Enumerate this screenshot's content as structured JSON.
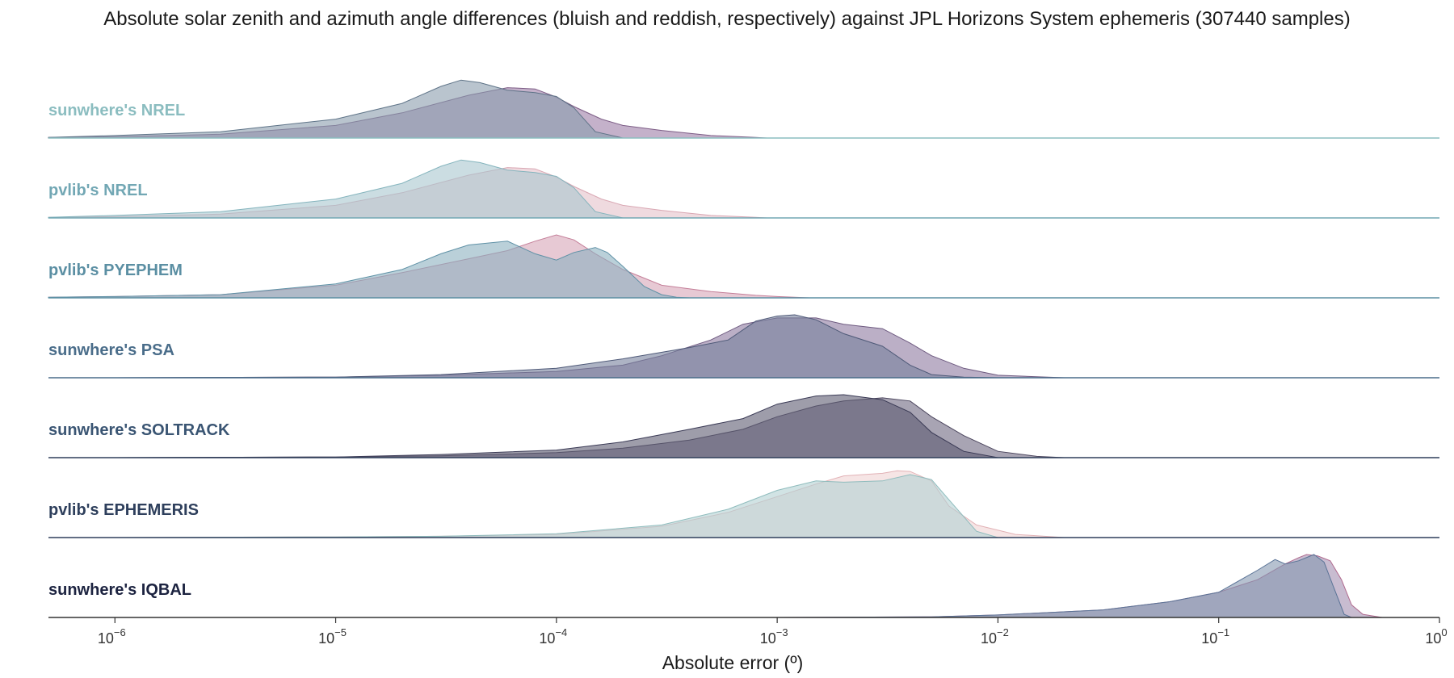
{
  "chart_data": {
    "type": "area",
    "subtype": "ridgeline-kde",
    "title": "Absolute solar zenith and azimuth angle differences (bluish and reddish, respectively) against JPL Horizons System ephemeris (307440 samples)",
    "xlabel": "Absolute error (º)",
    "xscale": "log",
    "xlim": [
      5e-07,
      1
    ],
    "x_ticks": [
      {
        "base": "10",
        "exp": "−6",
        "value": 1e-06
      },
      {
        "base": "10",
        "exp": "−5",
        "value": 1e-05
      },
      {
        "base": "10",
        "exp": "−4",
        "value": 0.0001
      },
      {
        "base": "10",
        "exp": "−3",
        "value": 0.001
      },
      {
        "base": "10",
        "exp": "−2",
        "value": 0.01
      },
      {
        "base": "10",
        "exp": "−1",
        "value": 0.1
      },
      {
        "base": "10",
        "exp": "0",
        "value": 1
      }
    ],
    "grid": false,
    "legend": "none",
    "rows": [
      {
        "label": "sunwhere's NREL",
        "label_color": "#8bbdc0",
        "baseline_color": "#8bbdc0",
        "zenith": {
          "fill": "#8a9cad",
          "stroke": "#5e7387",
          "x": [
            5e-07,
            1e-06,
            3e-06,
            1e-05,
            2e-05,
            3e-05,
            3.7e-05,
            4.5e-05,
            6e-05,
            8e-05,
            0.0001,
            0.00012,
            0.00015,
            0.0002
          ],
          "y": [
            0.01,
            0.04,
            0.1,
            0.3,
            0.55,
            0.82,
            0.92,
            0.88,
            0.76,
            0.72,
            0.66,
            0.48,
            0.1,
            0.0
          ]
        },
        "azimuth": {
          "fill": "#9d7da6",
          "stroke": "#7d5d86",
          "x": [
            5e-07,
            1e-06,
            3e-06,
            1e-05,
            2e-05,
            4e-05,
            6e-05,
            8e-05,
            0.0001,
            0.00012,
            0.00016,
            0.0002,
            0.0003,
            0.0005,
            0.0008,
            0.0009
          ],
          "y": [
            0.01,
            0.02,
            0.06,
            0.2,
            0.4,
            0.68,
            0.8,
            0.78,
            0.65,
            0.5,
            0.3,
            0.2,
            0.12,
            0.04,
            0.01,
            0.0
          ]
        }
      },
      {
        "label": "pvlib's NREL",
        "label_color": "#72a7b4",
        "baseline_color": "#72a7b4",
        "zenith": {
          "fill": "#a8c7cf",
          "stroke": "#84b4bd",
          "x": [
            5e-07,
            1e-06,
            3e-06,
            1e-05,
            2e-05,
            3e-05,
            3.7e-05,
            4.5e-05,
            6e-05,
            8e-05,
            0.0001,
            0.00012,
            0.00015,
            0.0002
          ],
          "y": [
            0.01,
            0.04,
            0.1,
            0.3,
            0.55,
            0.82,
            0.92,
            0.88,
            0.76,
            0.72,
            0.66,
            0.48,
            0.1,
            0.0
          ]
        },
        "azimuth": {
          "fill": "#e5c1c9",
          "stroke": "#d9a7b3",
          "x": [
            5e-07,
            1e-06,
            3e-06,
            1e-05,
            2e-05,
            4e-05,
            6e-05,
            8e-05,
            0.0001,
            0.00012,
            0.00016,
            0.0002,
            0.0003,
            0.0005,
            0.0008,
            0.0009
          ],
          "y": [
            0.01,
            0.02,
            0.06,
            0.2,
            0.4,
            0.68,
            0.8,
            0.78,
            0.65,
            0.5,
            0.3,
            0.2,
            0.12,
            0.04,
            0.01,
            0.0
          ]
        }
      },
      {
        "label": "pvlib's PYEPHEM",
        "label_color": "#5b8fa3",
        "baseline_color": "#5b8fa3",
        "zenith": {
          "fill": "#8cb1c0",
          "stroke": "#5f91a6",
          "x": [
            5e-07,
            1e-06,
            3e-06,
            1e-05,
            2e-05,
            3e-05,
            4e-05,
            6e-05,
            8e-05,
            0.0001,
            0.00012,
            0.00015,
            0.00017,
            0.0002,
            0.00025,
            0.0003,
            0.00035,
            0.0004
          ],
          "y": [
            0.01,
            0.02,
            0.05,
            0.22,
            0.45,
            0.7,
            0.84,
            0.9,
            0.7,
            0.6,
            0.72,
            0.8,
            0.72,
            0.5,
            0.18,
            0.05,
            0.01,
            0.0
          ]
        },
        "azimuth": {
          "fill": "#d7a5b8",
          "stroke": "#c47f99",
          "x": [
            5e-07,
            1e-06,
            3e-06,
            1e-05,
            2e-05,
            4e-05,
            6e-05,
            8e-05,
            0.0001,
            0.00012,
            0.00015,
            0.0002,
            0.0003,
            0.0005,
            0.0008,
            0.001,
            0.0014
          ],
          "y": [
            0.01,
            0.02,
            0.05,
            0.2,
            0.4,
            0.62,
            0.75,
            0.9,
            1.0,
            0.92,
            0.7,
            0.45,
            0.2,
            0.1,
            0.04,
            0.02,
            0.0
          ]
        }
      },
      {
        "label": "sunwhere's PSA",
        "label_color": "#4a6d8a",
        "baseline_color": "#4a6d8a",
        "zenith": {
          "fill": "#76819d",
          "stroke": "#4f5a78",
          "x": [
            1e-06,
            1e-05,
            3e-05,
            0.0001,
            0.0002,
            0.0004,
            0.0006,
            0.0008,
            0.001,
            0.0012,
            0.0015,
            0.002,
            0.003,
            0.004,
            0.005,
            0.007,
            0.01
          ],
          "y": [
            0.0,
            0.01,
            0.05,
            0.15,
            0.3,
            0.48,
            0.6,
            0.9,
            0.98,
            1.0,
            0.92,
            0.7,
            0.5,
            0.2,
            0.05,
            0.01,
            0.0
          ]
        },
        "azimuth": {
          "fill": "#8e7aa0",
          "stroke": "#6e5a80",
          "x": [
            1e-06,
            1e-05,
            3e-05,
            0.0001,
            0.0002,
            0.0003,
            0.0005,
            0.0007,
            0.001,
            0.0015,
            0.002,
            0.003,
            0.004,
            0.005,
            0.007,
            0.01,
            0.02
          ],
          "y": [
            0.0,
            0.01,
            0.04,
            0.1,
            0.2,
            0.35,
            0.6,
            0.85,
            0.95,
            0.95,
            0.85,
            0.78,
            0.55,
            0.35,
            0.15,
            0.04,
            0.0
          ]
        }
      },
      {
        "label": "sunwhere's SOLTRACK",
        "label_color": "#3a5573",
        "baseline_color": "#2f3f5a",
        "zenith": {
          "fill": "#5d5b72",
          "stroke": "#3a3a55",
          "x": [
            1e-06,
            1e-05,
            3e-05,
            0.0001,
            0.0002,
            0.0004,
            0.0007,
            0.001,
            0.0015,
            0.002,
            0.003,
            0.004,
            0.005,
            0.007,
            0.01
          ],
          "y": [
            0.0,
            0.01,
            0.05,
            0.12,
            0.25,
            0.45,
            0.62,
            0.85,
            0.98,
            1.0,
            0.92,
            0.72,
            0.4,
            0.1,
            0.0
          ]
        },
        "azimuth": {
          "fill": "#6e6880",
          "stroke": "#4c465e",
          "x": [
            1e-06,
            1e-05,
            3e-05,
            0.0001,
            0.0002,
            0.0004,
            0.0007,
            0.001,
            0.0015,
            0.002,
            0.003,
            0.004,
            0.005,
            0.007,
            0.01,
            0.015,
            0.02
          ],
          "y": [
            0.0,
            0.01,
            0.03,
            0.08,
            0.15,
            0.28,
            0.45,
            0.65,
            0.82,
            0.9,
            0.95,
            0.9,
            0.65,
            0.35,
            0.1,
            0.02,
            0.0
          ]
        }
      },
      {
        "label": "pvlib's EPHEMERIS",
        "label_color": "#2e3f5c",
        "baseline_color": "#2e3f5c",
        "zenith": {
          "fill": "#b2d1d2",
          "stroke": "#8fbcbd",
          "x": [
            1e-06,
            1e-05,
            3e-05,
            0.0001,
            0.0003,
            0.0006,
            0.001,
            0.0015,
            0.002,
            0.003,
            0.004,
            0.005,
            0.006,
            0.008,
            0.01
          ],
          "y": [
            0.0,
            0.01,
            0.02,
            0.06,
            0.2,
            0.45,
            0.75,
            0.9,
            0.88,
            0.9,
            1.0,
            0.92,
            0.6,
            0.1,
            0.0
          ]
        },
        "azimuth": {
          "fill": "#f0d4d4",
          "stroke": "#e2b2b6",
          "x": [
            1e-06,
            1e-05,
            3e-05,
            0.0001,
            0.0003,
            0.0006,
            0.001,
            0.0015,
            0.002,
            0.003,
            0.0035,
            0.004,
            0.005,
            0.006,
            0.008,
            0.012,
            0.02
          ],
          "y": [
            0.0,
            0.01,
            0.02,
            0.05,
            0.18,
            0.4,
            0.65,
            0.85,
            0.98,
            1.02,
            1.06,
            1.05,
            0.9,
            0.5,
            0.2,
            0.05,
            0.0
          ]
        }
      },
      {
        "label": "sunwhere's IQBAL",
        "label_color": "#1c2340",
        "baseline_color": "#333333",
        "zenith": {
          "fill": "#8597b1",
          "stroke": "#5a7396",
          "x": [
            0.001,
            0.005,
            0.01,
            0.03,
            0.06,
            0.1,
            0.15,
            0.18,
            0.2,
            0.23,
            0.27,
            0.3,
            0.33,
            0.37,
            0.4
          ],
          "y": [
            0.0,
            0.01,
            0.04,
            0.12,
            0.25,
            0.4,
            0.75,
            0.92,
            0.85,
            0.9,
            1.0,
            0.88,
            0.5,
            0.05,
            0.0
          ]
        },
        "azimuth": {
          "fill": "#a38fb0",
          "stroke": "#b06a8e",
          "x": [
            0.001,
            0.005,
            0.01,
            0.03,
            0.06,
            0.1,
            0.15,
            0.2,
            0.23,
            0.25,
            0.28,
            0.32,
            0.36,
            0.4,
            0.45,
            0.55
          ],
          "y": [
            0.0,
            0.01,
            0.04,
            0.12,
            0.25,
            0.4,
            0.6,
            0.85,
            0.95,
            1.0,
            0.98,
            0.9,
            0.6,
            0.2,
            0.05,
            0.0
          ]
        }
      }
    ]
  }
}
